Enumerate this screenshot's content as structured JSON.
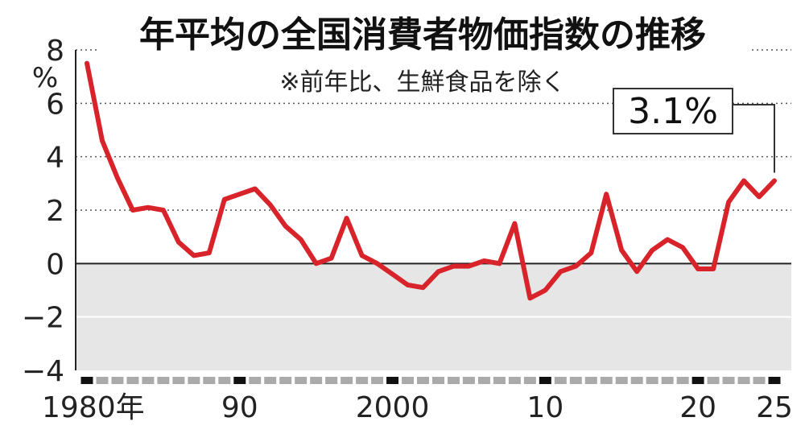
{
  "chart_data": {
    "type": "line",
    "title": "年平均の全国消費者物価指数の推移",
    "note": "※前年比、生鮮食品を除く",
    "ylabel": "%",
    "ylim": [
      -4,
      8
    ],
    "yticks": [
      "8",
      "6",
      "4",
      "2",
      "0",
      "−2",
      "−4"
    ],
    "ytick_values": [
      8,
      6,
      4,
      2,
      0,
      -2,
      -4
    ],
    "xtick_labels": [
      {
        "year": 1980,
        "label": "1980年"
      },
      {
        "year": 1990,
        "label": "90"
      },
      {
        "year": 2000,
        "label": "2000"
      },
      {
        "year": 2010,
        "label": "10"
      },
      {
        "year": 2020,
        "label": "20"
      },
      {
        "year": 2025,
        "label": "25"
      }
    ],
    "grid": true,
    "negative_region_shaded": true,
    "line_color": "#d8232a",
    "series": [
      {
        "x": [
          1980,
          1981,
          1982,
          1983,
          1984,
          1985,
          1986,
          1987,
          1988,
          1989,
          1990,
          1991,
          1992,
          1993,
          1994,
          1995,
          1996,
          1997,
          1998,
          1999,
          2000,
          2001,
          2002,
          2003,
          2004,
          2005,
          2006,
          2007,
          2008,
          2009,
          2010,
          2011,
          2012,
          2013,
          2014,
          2015,
          2016,
          2017,
          2018,
          2019,
          2020,
          2021,
          2022,
          2023,
          2024,
          2025
        ],
        "values": [
          7.5,
          4.6,
          3.2,
          2.0,
          2.1,
          2.0,
          0.8,
          0.3,
          0.4,
          2.4,
          2.6,
          2.8,
          2.2,
          1.4,
          0.9,
          0.0,
          0.2,
          1.7,
          0.3,
          0.0,
          -0.4,
          -0.8,
          -0.9,
          -0.3,
          -0.1,
          -0.1,
          0.1,
          0.0,
          1.5,
          -1.3,
          -1.0,
          -0.3,
          -0.1,
          0.4,
          2.6,
          0.5,
          -0.3,
          0.5,
          0.9,
          0.6,
          -0.2,
          -0.2,
          2.3,
          3.1,
          2.5,
          3.1
        ]
      }
    ],
    "callout": {
      "label": "3.1%",
      "year": 2025,
      "value": 3.1
    }
  }
}
